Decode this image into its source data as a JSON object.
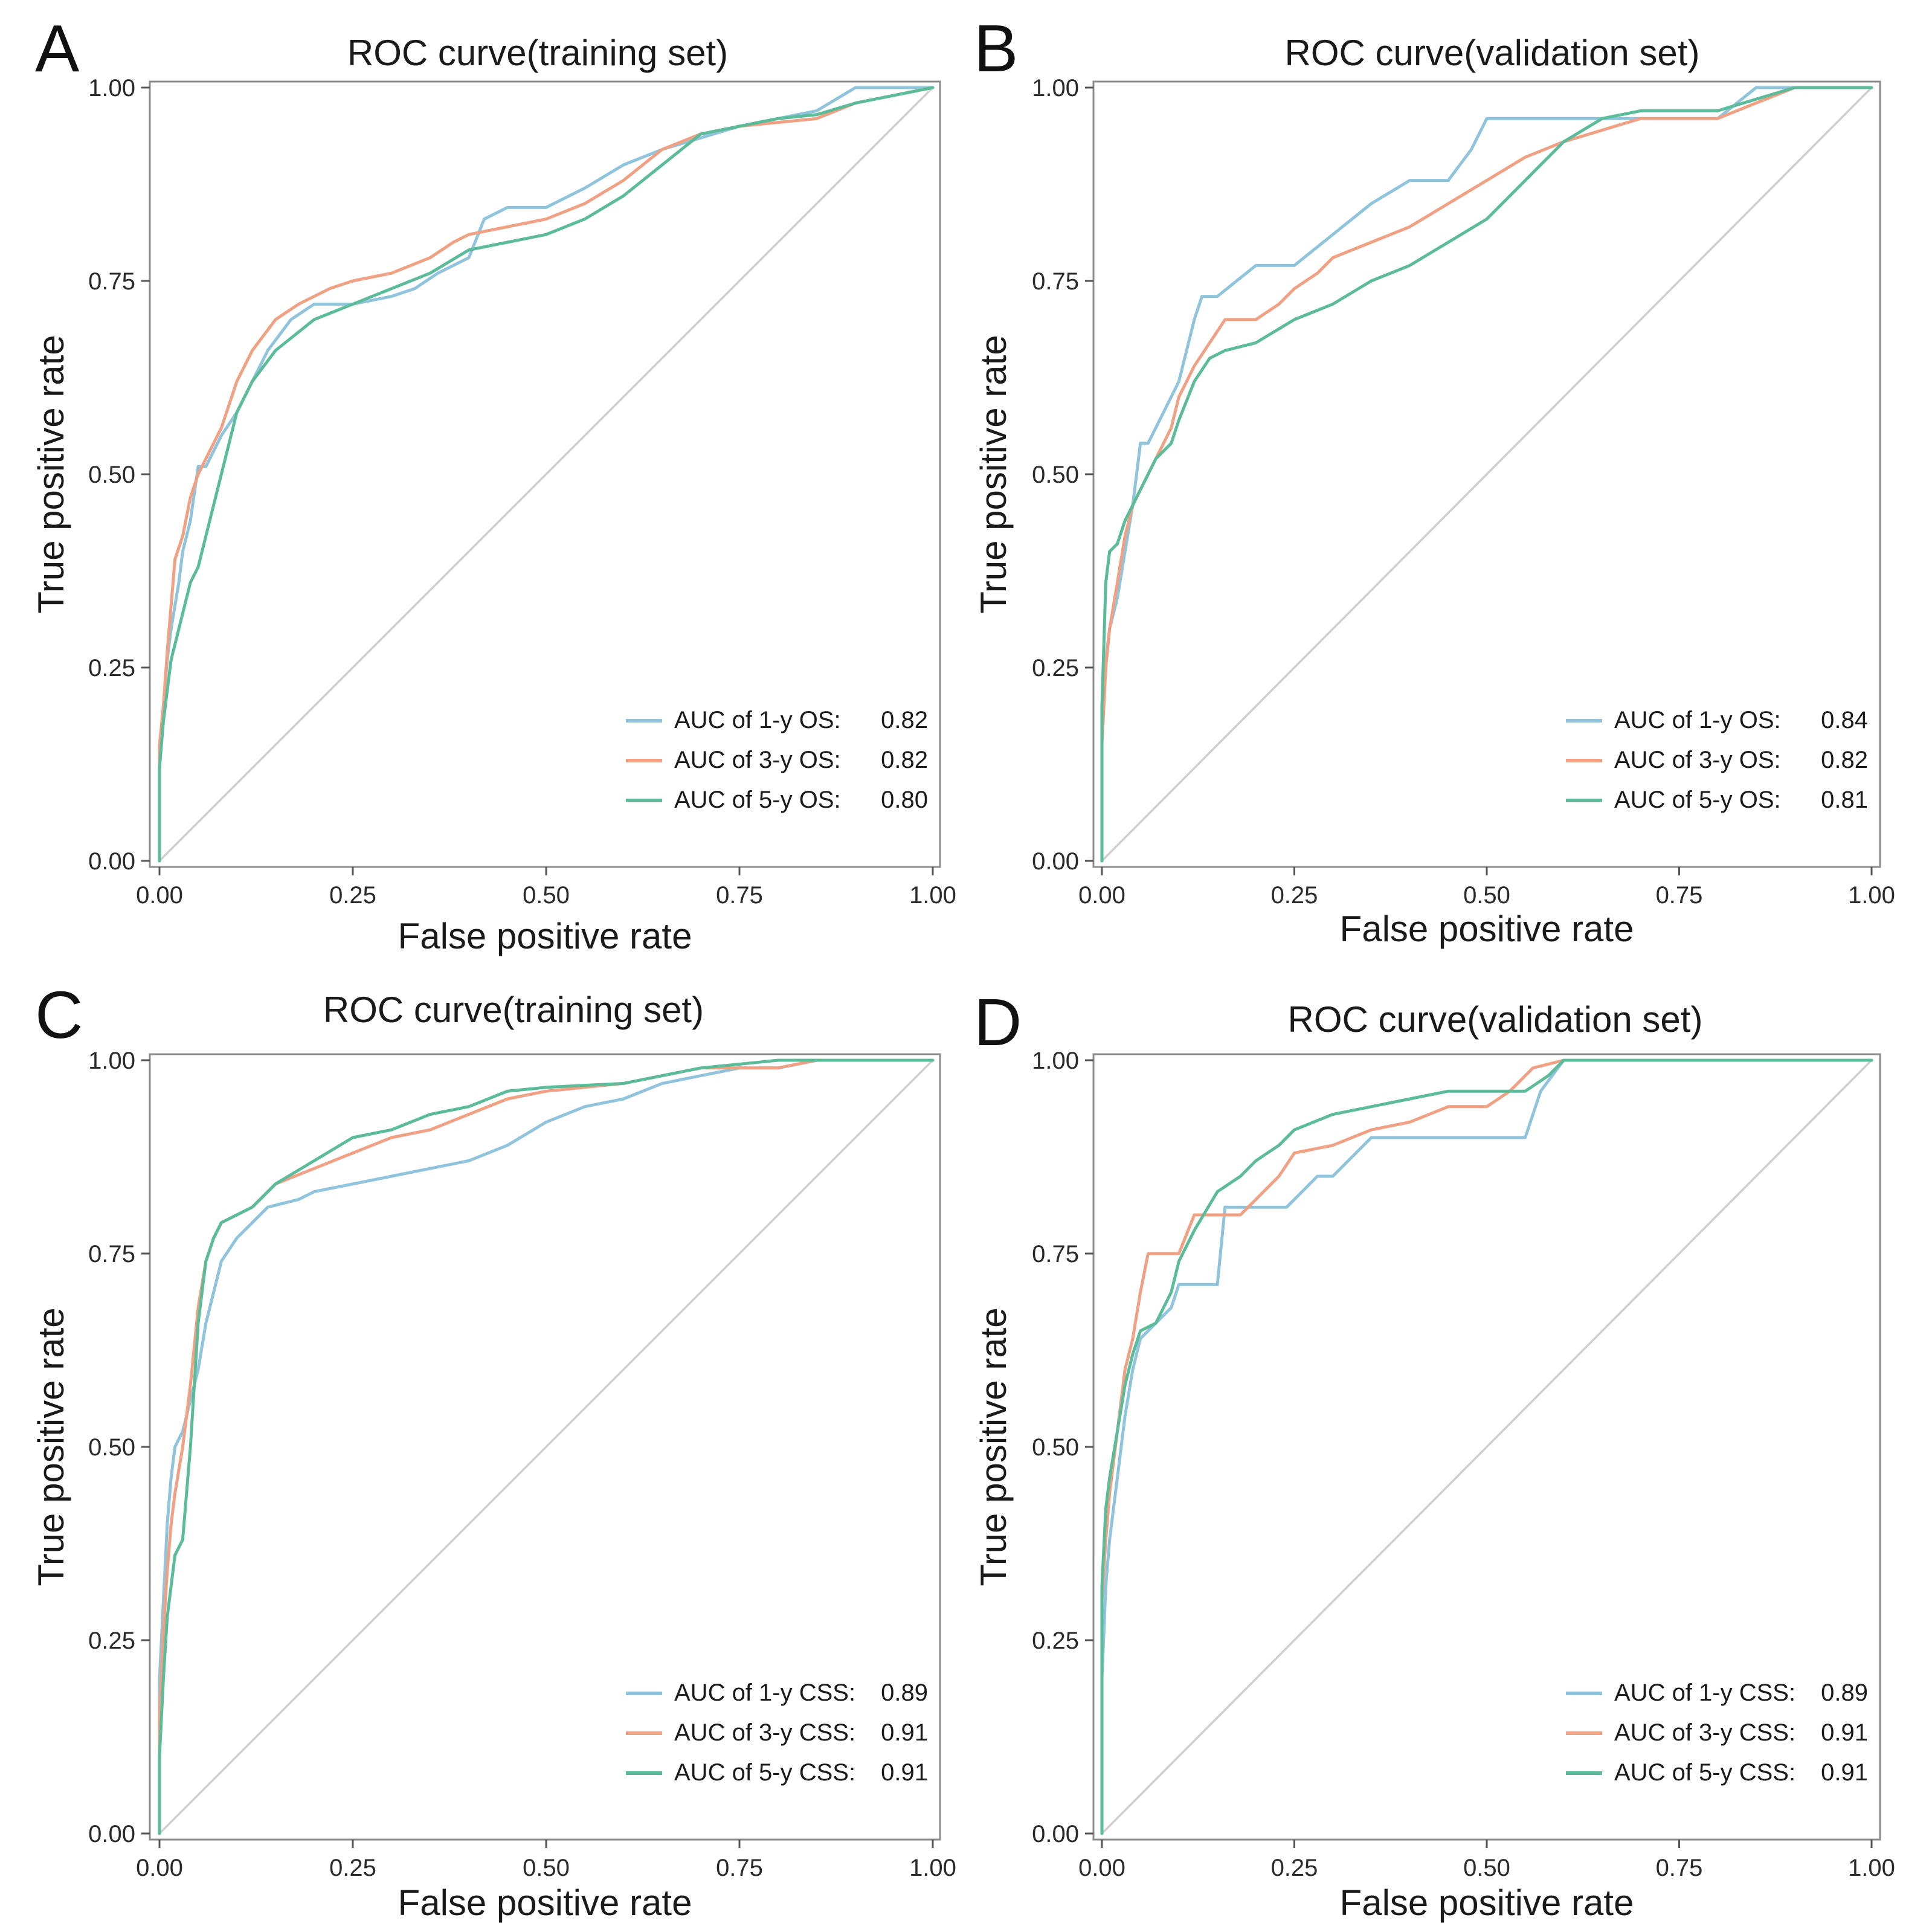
{
  "figure": {
    "colors": {
      "series1": "#8fc4dc",
      "series2": "#f0a183",
      "series3": "#5cbc9a",
      "diagonal": "#cfcfcf"
    }
  },
  "chart_data": [
    {
      "panel": "A",
      "type": "line",
      "title": "ROC curve(training set)",
      "xlabel": "False positive rate",
      "ylabel": "True positive rate",
      "xlim": [
        0,
        1
      ],
      "ylim": [
        0,
        1
      ],
      "xticks": [
        "0.00",
        "0.25",
        "0.50",
        "0.75",
        "1.00"
      ],
      "yticks": [
        "0.00",
        "0.25",
        "0.50",
        "0.75",
        "1.00"
      ],
      "legend_position": "bottom-right",
      "reference_line": "diagonal",
      "series": [
        {
          "name": "AUC of 1-y OS:",
          "auc": "0.82",
          "color": "#8fc4dc",
          "x": [
            0,
            0,
            0.005,
            0.01,
            0.015,
            0.02,
            0.025,
            0.03,
            0.04,
            0.05,
            0.06,
            0.08,
            0.1,
            0.12,
            0.14,
            0.17,
            0.2,
            0.25,
            0.3,
            0.33,
            0.36,
            0.4,
            0.42,
            0.45,
            0.5,
            0.55,
            0.6,
            0.65,
            0.7,
            0.75,
            0.8,
            0.85,
            0.9,
            0.95,
            1
          ],
          "y": [
            0,
            0.12,
            0.2,
            0.26,
            0.3,
            0.33,
            0.36,
            0.4,
            0.44,
            0.51,
            0.51,
            0.55,
            0.58,
            0.62,
            0.66,
            0.7,
            0.72,
            0.72,
            0.73,
            0.74,
            0.76,
            0.78,
            0.83,
            0.845,
            0.845,
            0.87,
            0.9,
            0.92,
            0.935,
            0.95,
            0.96,
            0.97,
            1,
            1,
            1
          ]
        },
        {
          "name": "AUC of 3-y OS:",
          "auc": "0.82",
          "color": "#f0a183",
          "x": [
            0,
            0,
            0.005,
            0.01,
            0.015,
            0.02,
            0.03,
            0.04,
            0.05,
            0.06,
            0.08,
            0.1,
            0.12,
            0.15,
            0.18,
            0.2,
            0.22,
            0.25,
            0.3,
            0.35,
            0.38,
            0.4,
            0.45,
            0.5,
            0.55,
            0.6,
            0.65,
            0.7,
            0.75,
            0.8,
            0.85,
            0.9,
            0.95,
            1
          ],
          "y": [
            0,
            0.15,
            0.2,
            0.27,
            0.33,
            0.39,
            0.42,
            0.47,
            0.5,
            0.52,
            0.56,
            0.62,
            0.66,
            0.7,
            0.72,
            0.73,
            0.74,
            0.75,
            0.76,
            0.78,
            0.8,
            0.81,
            0.82,
            0.83,
            0.85,
            0.88,
            0.92,
            0.94,
            0.95,
            0.955,
            0.96,
            0.98,
            0.99,
            1
          ]
        },
        {
          "name": "AUC of 5-y OS:",
          "auc": "0.80",
          "color": "#5cbc9a",
          "x": [
            0,
            0,
            0.005,
            0.01,
            0.015,
            0.02,
            0.03,
            0.04,
            0.05,
            0.06,
            0.07,
            0.08,
            0.09,
            0.1,
            0.12,
            0.15,
            0.2,
            0.25,
            0.3,
            0.35,
            0.4,
            0.45,
            0.5,
            0.55,
            0.6,
            0.65,
            0.7,
            0.75,
            0.8,
            0.85,
            0.9,
            0.95,
            1
          ],
          "y": [
            0,
            0.12,
            0.18,
            0.22,
            0.26,
            0.28,
            0.32,
            0.36,
            0.38,
            0.42,
            0.46,
            0.5,
            0.54,
            0.58,
            0.62,
            0.66,
            0.7,
            0.72,
            0.74,
            0.76,
            0.79,
            0.8,
            0.81,
            0.83,
            0.86,
            0.9,
            0.94,
            0.95,
            0.96,
            0.965,
            0.98,
            0.99,
            1
          ]
        }
      ],
      "diagonal": [
        [
          0,
          0
        ],
        [
          1,
          1
        ]
      ]
    },
    {
      "panel": "B",
      "type": "line",
      "title": "ROC curve(validation set)",
      "xlabel": "False positive rate",
      "ylabel": "True positive rate",
      "xlim": [
        0,
        1
      ],
      "ylim": [
        0,
        1
      ],
      "xticks": [
        "0.00",
        "0.25",
        "0.50",
        "0.75",
        "1.00"
      ],
      "yticks": [
        "0.00",
        "0.25",
        "0.50",
        "0.75",
        "1.00"
      ],
      "legend_position": "bottom-right",
      "reference_line": "diagonal",
      "series": [
        {
          "name": "AUC of 1-y OS:",
          "auc": "0.84",
          "color": "#8fc4dc",
          "x": [
            0,
            0,
            0.005,
            0.01,
            0.02,
            0.03,
            0.04,
            0.05,
            0.06,
            0.08,
            0.1,
            0.12,
            0.13,
            0.15,
            0.2,
            0.25,
            0.3,
            0.35,
            0.4,
            0.45,
            0.48,
            0.5,
            0.55,
            0.6,
            0.7,
            0.8,
            0.85,
            0.9,
            0.95,
            1
          ],
          "y": [
            0,
            0.2,
            0.26,
            0.3,
            0.34,
            0.4,
            0.46,
            0.54,
            0.54,
            0.58,
            0.62,
            0.7,
            0.73,
            0.73,
            0.77,
            0.77,
            0.81,
            0.85,
            0.88,
            0.88,
            0.92,
            0.96,
            0.96,
            0.96,
            0.96,
            0.96,
            1,
            1,
            1,
            1
          ]
        },
        {
          "name": "AUC of 3-y OS:",
          "auc": "0.82",
          "color": "#f0a183",
          "x": [
            0,
            0,
            0.005,
            0.01,
            0.02,
            0.03,
            0.04,
            0.05,
            0.07,
            0.09,
            0.1,
            0.12,
            0.14,
            0.16,
            0.2,
            0.23,
            0.25,
            0.28,
            0.3,
            0.35,
            0.4,
            0.45,
            0.5,
            0.55,
            0.6,
            0.7,
            0.8,
            0.85,
            0.9,
            1
          ],
          "y": [
            0,
            0.15,
            0.25,
            0.3,
            0.36,
            0.42,
            0.46,
            0.48,
            0.52,
            0.56,
            0.6,
            0.64,
            0.67,
            0.7,
            0.7,
            0.72,
            0.74,
            0.76,
            0.78,
            0.8,
            0.82,
            0.85,
            0.88,
            0.91,
            0.93,
            0.96,
            0.96,
            0.98,
            1,
            1
          ]
        },
        {
          "name": "AUC of 5-y OS:",
          "auc": "0.81",
          "color": "#5cbc9a",
          "x": [
            0,
            0,
            0.005,
            0.01,
            0.02,
            0.03,
            0.04,
            0.05,
            0.07,
            0.09,
            0.1,
            0.12,
            0.14,
            0.16,
            0.2,
            0.25,
            0.3,
            0.35,
            0.4,
            0.45,
            0.5,
            0.55,
            0.6,
            0.65,
            0.7,
            0.8,
            0.9,
            1
          ],
          "y": [
            0,
            0.2,
            0.36,
            0.4,
            0.41,
            0.44,
            0.46,
            0.48,
            0.52,
            0.54,
            0.57,
            0.62,
            0.65,
            0.66,
            0.67,
            0.7,
            0.72,
            0.75,
            0.77,
            0.8,
            0.83,
            0.88,
            0.93,
            0.96,
            0.97,
            0.97,
            1,
            1
          ]
        }
      ],
      "diagonal": [
        [
          0,
          0
        ],
        [
          1,
          1
        ]
      ]
    },
    {
      "panel": "C",
      "type": "line",
      "title": "ROC curve(training set)",
      "xlabel": "False positive rate",
      "ylabel": "True positive rate",
      "xlim": [
        0,
        1
      ],
      "ylim": [
        0,
        1
      ],
      "xticks": [
        "0.00",
        "0.25",
        "0.50",
        "0.75",
        "1.00"
      ],
      "yticks": [
        "0.00",
        "0.25",
        "0.50",
        "0.75",
        "1.00"
      ],
      "legend_position": "bottom-right",
      "reference_line": "diagonal",
      "series": [
        {
          "name": "AUC of 1-y CSS:",
          "auc": "0.89",
          "color": "#8fc4dc",
          "x": [
            0,
            0,
            0.005,
            0.01,
            0.015,
            0.02,
            0.03,
            0.04,
            0.05,
            0.06,
            0.07,
            0.08,
            0.1,
            0.12,
            0.14,
            0.18,
            0.2,
            0.25,
            0.3,
            0.35,
            0.4,
            0.45,
            0.5,
            0.55,
            0.6,
            0.65,
            0.7,
            0.75,
            0.8,
            0.85,
            0.9,
            1
          ],
          "y": [
            0,
            0.2,
            0.3,
            0.4,
            0.46,
            0.5,
            0.52,
            0.56,
            0.6,
            0.66,
            0.7,
            0.74,
            0.77,
            0.79,
            0.81,
            0.82,
            0.83,
            0.84,
            0.85,
            0.86,
            0.87,
            0.89,
            0.92,
            0.94,
            0.95,
            0.97,
            0.98,
            0.99,
            0.99,
            1,
            1,
            1
          ]
        },
        {
          "name": "AUC of 3-y CSS:",
          "auc": "0.91",
          "color": "#f0a183",
          "x": [
            0,
            0,
            0.005,
            0.01,
            0.015,
            0.02,
            0.03,
            0.04,
            0.05,
            0.06,
            0.07,
            0.08,
            0.1,
            0.12,
            0.15,
            0.2,
            0.25,
            0.3,
            0.35,
            0.4,
            0.45,
            0.5,
            0.6,
            0.7,
            0.8,
            0.85,
            0.9,
            1
          ],
          "y": [
            0,
            0.15,
            0.26,
            0.34,
            0.4,
            0.44,
            0.5,
            0.58,
            0.68,
            0.74,
            0.77,
            0.79,
            0.8,
            0.81,
            0.84,
            0.86,
            0.88,
            0.9,
            0.91,
            0.93,
            0.95,
            0.96,
            0.97,
            0.99,
            0.99,
            1,
            1,
            1
          ]
        },
        {
          "name": "AUC of 5-y CSS:",
          "auc": "0.91",
          "color": "#5cbc9a",
          "x": [
            0,
            0,
            0.005,
            0.01,
            0.015,
            0.02,
            0.03,
            0.04,
            0.05,
            0.06,
            0.07,
            0.08,
            0.1,
            0.12,
            0.15,
            0.2,
            0.25,
            0.3,
            0.35,
            0.4,
            0.45,
            0.5,
            0.6,
            0.7,
            0.8,
            0.9,
            1
          ],
          "y": [
            0,
            0.1,
            0.2,
            0.28,
            0.32,
            0.36,
            0.38,
            0.5,
            0.66,
            0.74,
            0.77,
            0.79,
            0.8,
            0.81,
            0.84,
            0.87,
            0.9,
            0.91,
            0.93,
            0.94,
            0.96,
            0.965,
            0.97,
            0.99,
            1,
            1,
            1
          ]
        }
      ],
      "diagonal": [
        [
          0,
          0
        ],
        [
          1,
          1
        ]
      ]
    },
    {
      "panel": "D",
      "type": "line",
      "title": "ROC curve(validation set)",
      "xlabel": "False positive rate",
      "ylabel": "True positive rate",
      "xlim": [
        0,
        1
      ],
      "ylim": [
        0,
        1
      ],
      "xticks": [
        "0.00",
        "0.25",
        "0.50",
        "0.75",
        "1.00"
      ],
      "yticks": [
        "0.00",
        "0.25",
        "0.50",
        "0.75",
        "1.00"
      ],
      "legend_position": "bottom-right",
      "reference_line": "diagonal",
      "series": [
        {
          "name": "AUC of 1-y CSS:",
          "auc": "0.89",
          "color": "#8fc4dc",
          "x": [
            0,
            0,
            0.005,
            0.01,
            0.02,
            0.03,
            0.04,
            0.05,
            0.07,
            0.09,
            0.1,
            0.12,
            0.15,
            0.16,
            0.2,
            0.24,
            0.28,
            0.3,
            0.35,
            0.4,
            0.45,
            0.5,
            0.55,
            0.57,
            0.6,
            0.65,
            0.7,
            0.8,
            0.9,
            1
          ],
          "y": [
            0,
            0.2,
            0.32,
            0.38,
            0.46,
            0.54,
            0.6,
            0.64,
            0.66,
            0.68,
            0.71,
            0.71,
            0.71,
            0.81,
            0.81,
            0.81,
            0.85,
            0.85,
            0.9,
            0.9,
            0.9,
            0.9,
            0.9,
            0.96,
            1,
            1,
            1,
            1,
            1,
            1
          ]
        },
        {
          "name": "AUC of 3-y CSS:",
          "auc": "0.91",
          "color": "#f0a183",
          "x": [
            0,
            0,
            0.005,
            0.01,
            0.02,
            0.03,
            0.04,
            0.05,
            0.06,
            0.08,
            0.1,
            0.12,
            0.15,
            0.18,
            0.2,
            0.23,
            0.25,
            0.3,
            0.35,
            0.4,
            0.45,
            0.5,
            0.53,
            0.56,
            0.6,
            0.7,
            0.8,
            0.9,
            1
          ],
          "y": [
            0,
            0.3,
            0.38,
            0.44,
            0.52,
            0.6,
            0.64,
            0.7,
            0.75,
            0.75,
            0.75,
            0.8,
            0.8,
            0.8,
            0.82,
            0.85,
            0.88,
            0.89,
            0.91,
            0.92,
            0.94,
            0.94,
            0.96,
            0.99,
            1,
            1,
            1,
            1,
            1
          ]
        },
        {
          "name": "AUC of 5-y CSS:",
          "auc": "0.91",
          "color": "#5cbc9a",
          "x": [
            0,
            0,
            0.005,
            0.01,
            0.02,
            0.03,
            0.04,
            0.05,
            0.07,
            0.09,
            0.1,
            0.12,
            0.15,
            0.18,
            0.2,
            0.23,
            0.25,
            0.3,
            0.35,
            0.4,
            0.45,
            0.5,
            0.55,
            0.58,
            0.6,
            0.7,
            0.8,
            0.9,
            1
          ],
          "y": [
            0,
            0.32,
            0.42,
            0.46,
            0.52,
            0.58,
            0.62,
            0.65,
            0.66,
            0.7,
            0.74,
            0.78,
            0.83,
            0.85,
            0.87,
            0.89,
            0.91,
            0.93,
            0.94,
            0.95,
            0.96,
            0.96,
            0.96,
            0.98,
            1,
            1,
            1,
            1,
            1
          ]
        }
      ],
      "diagonal": [
        [
          0,
          0
        ],
        [
          1,
          1
        ]
      ]
    }
  ]
}
